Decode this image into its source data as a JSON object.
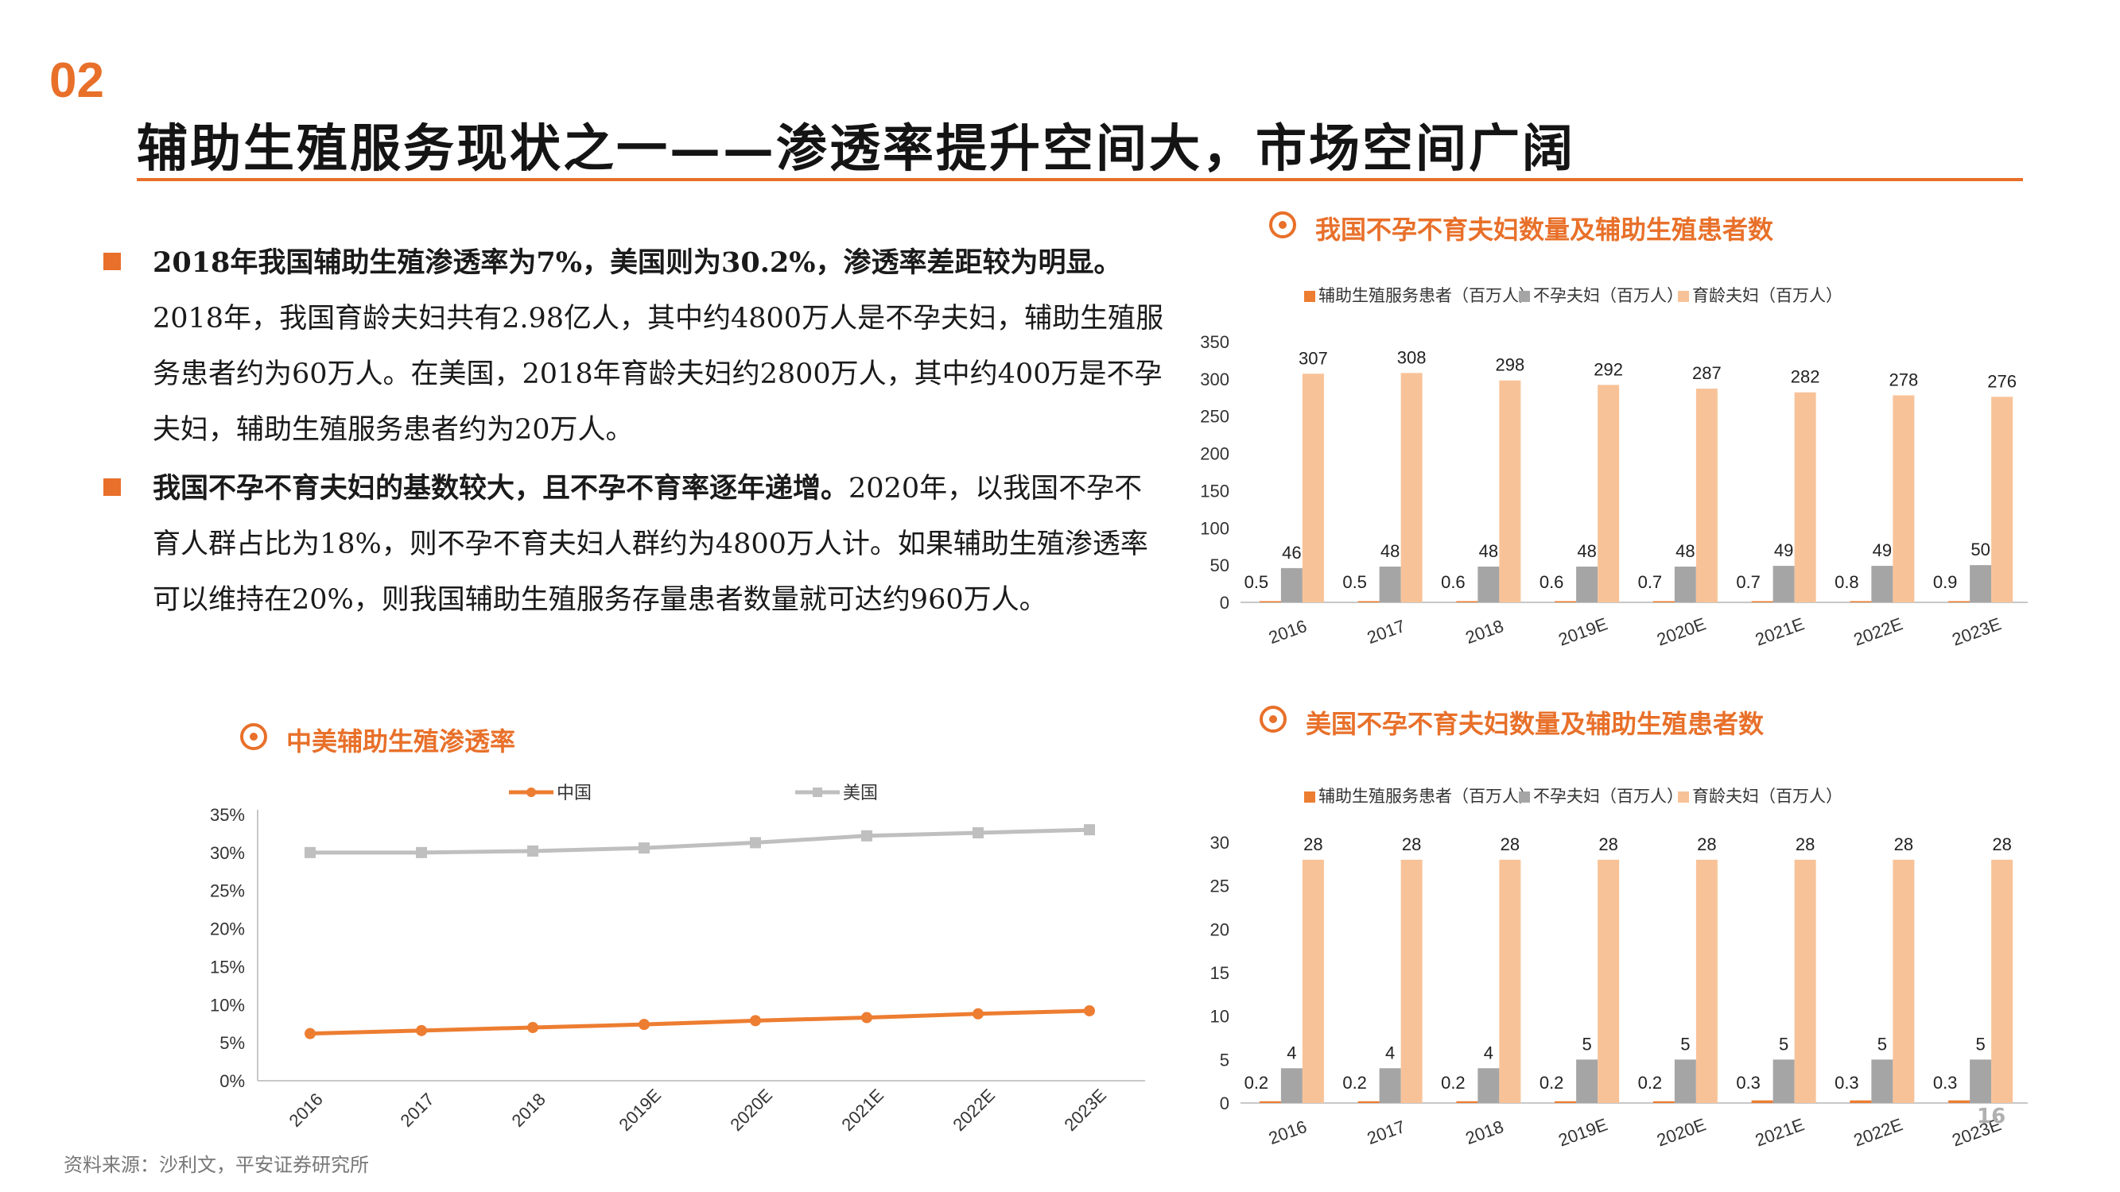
{
  "header": {
    "section_number": "02",
    "title": "辅助生殖服务现状之一——渗透率提升空间大，市场空间广阔"
  },
  "bullets": [
    {
      "bold": "2018年我国辅助生殖渗透率为7%，美国则为30.2%，渗透率差距较为明显。",
      "text": " 2018年，我国育龄夫妇共有2.98亿人，其中约4800万人是不孕夫妇，辅助生殖服务患者约为60万人。在美国，2018年育龄夫妇约2800万人，其中约400万是不孕夫妇，辅助生殖服务患者约为20万人。"
    },
    {
      "bold": "我国不孕不育夫妇的基数较大，且不孕不育率逐年递增。",
      "text": "2020年，以我国不孕不育人群占比为18%，则不孕不育夫妇人群约为4800万人计。如果辅助生殖渗透率可以维持在20%，则我国辅助生殖服务存量患者数量就可达约960万人。"
    }
  ],
  "source_note": "资料来源：沙利文，平安证券研究所",
  "page_number": "16",
  "colors": {
    "accent": "#e8702a",
    "orange_series": "#ed7d31",
    "gray_series": "#a5a5a5",
    "peach_series": "#f8c298",
    "line_gray": "#bfbfbf"
  },
  "chart_data": [
    {
      "id": "china-bar",
      "type": "bar",
      "title": "我国不孕不育夫妇数量及辅助生殖患者数",
      "categories": [
        "2016",
        "2017",
        "2018",
        "2019E",
        "2020E",
        "2021E",
        "2022E",
        "2023E"
      ],
      "series": [
        {
          "name": "辅助生殖服务患者（百万人）",
          "color": "#ed7d31",
          "values": [
            0.5,
            0.5,
            0.6,
            0.6,
            0.7,
            0.7,
            0.8,
            0.9
          ]
        },
        {
          "name": "不孕夫妇（百万人）",
          "color": "#a5a5a5",
          "values": [
            46,
            48,
            48,
            48,
            48,
            49,
            49,
            50
          ]
        },
        {
          "name": "育龄夫妇（百万人）",
          "color": "#f8c298",
          "values": [
            307,
            308,
            298,
            292,
            287,
            282,
            278,
            276
          ]
        }
      ],
      "ylim": [
        0,
        350
      ],
      "yticks": [
        0,
        50,
        100,
        150,
        200,
        250,
        300,
        350
      ],
      "grid": false,
      "legend": "top"
    },
    {
      "id": "us-bar",
      "type": "bar",
      "title": "美国不孕不育夫妇数量及辅助生殖患者数",
      "categories": [
        "2016",
        "2017",
        "2018",
        "2019E",
        "2020E",
        "2021E",
        "2022E",
        "2023E"
      ],
      "series": [
        {
          "name": "辅助生殖服务患者（百万人）",
          "color": "#ed7d31",
          "values": [
            0.2,
            0.2,
            0.2,
            0.2,
            0.2,
            0.3,
            0.3,
            0.3
          ]
        },
        {
          "name": "不孕夫妇（百万人）",
          "color": "#a5a5a5",
          "values": [
            4,
            4,
            4,
            5,
            5,
            5,
            5,
            5
          ]
        },
        {
          "name": "育龄夫妇（百万人）",
          "color": "#f8c298",
          "values": [
            28,
            28,
            28,
            28,
            28,
            28,
            28,
            28
          ]
        }
      ],
      "ylim": [
        0,
        30
      ],
      "yticks": [
        0,
        5,
        10,
        15,
        20,
        25,
        30
      ],
      "grid": false,
      "legend": "top"
    },
    {
      "id": "penetration-line",
      "type": "line",
      "title": "中美辅助生殖渗透率",
      "categories": [
        "2016",
        "2017",
        "2018",
        "2019E",
        "2020E",
        "2021E",
        "2022E",
        "2023E"
      ],
      "series": [
        {
          "name": "中国",
          "color": "#ed7d31",
          "values": [
            6.2,
            6.6,
            7.0,
            7.4,
            7.9,
            8.3,
            8.8,
            9.2
          ]
        },
        {
          "name": "美国",
          "color": "#bfbfbf",
          "values": [
            30.0,
            30.0,
            30.2,
            30.6,
            31.3,
            32.2,
            32.6,
            33.0
          ]
        }
      ],
      "ylim": [
        0,
        35
      ],
      "yticks": [
        "0%",
        "5%",
        "10%",
        "15%",
        "20%",
        "25%",
        "30%",
        "35%"
      ],
      "ytick_values": [
        0,
        5,
        10,
        15,
        20,
        25,
        30,
        35
      ],
      "grid": false,
      "legend": "top"
    }
  ]
}
